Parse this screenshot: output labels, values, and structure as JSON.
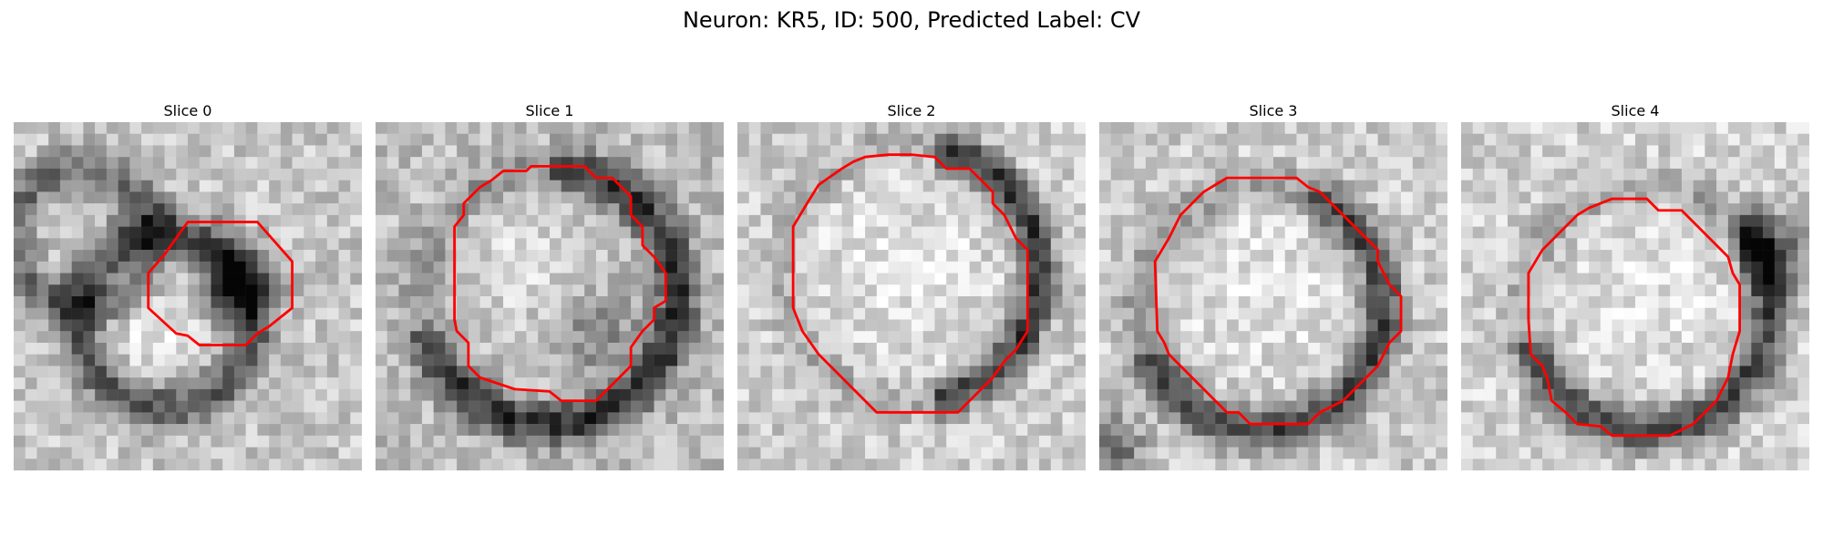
{
  "figure": {
    "title": "Neuron: KR5, ID: 500, Predicted Label: CV",
    "contour_color": "#ff0000"
  },
  "slices": [
    {
      "label": "Slice 0"
    },
    {
      "label": "Slice 1"
    },
    {
      "label": "Slice 2"
    },
    {
      "label": "Slice 3"
    },
    {
      "label": "Slice 4"
    }
  ]
}
